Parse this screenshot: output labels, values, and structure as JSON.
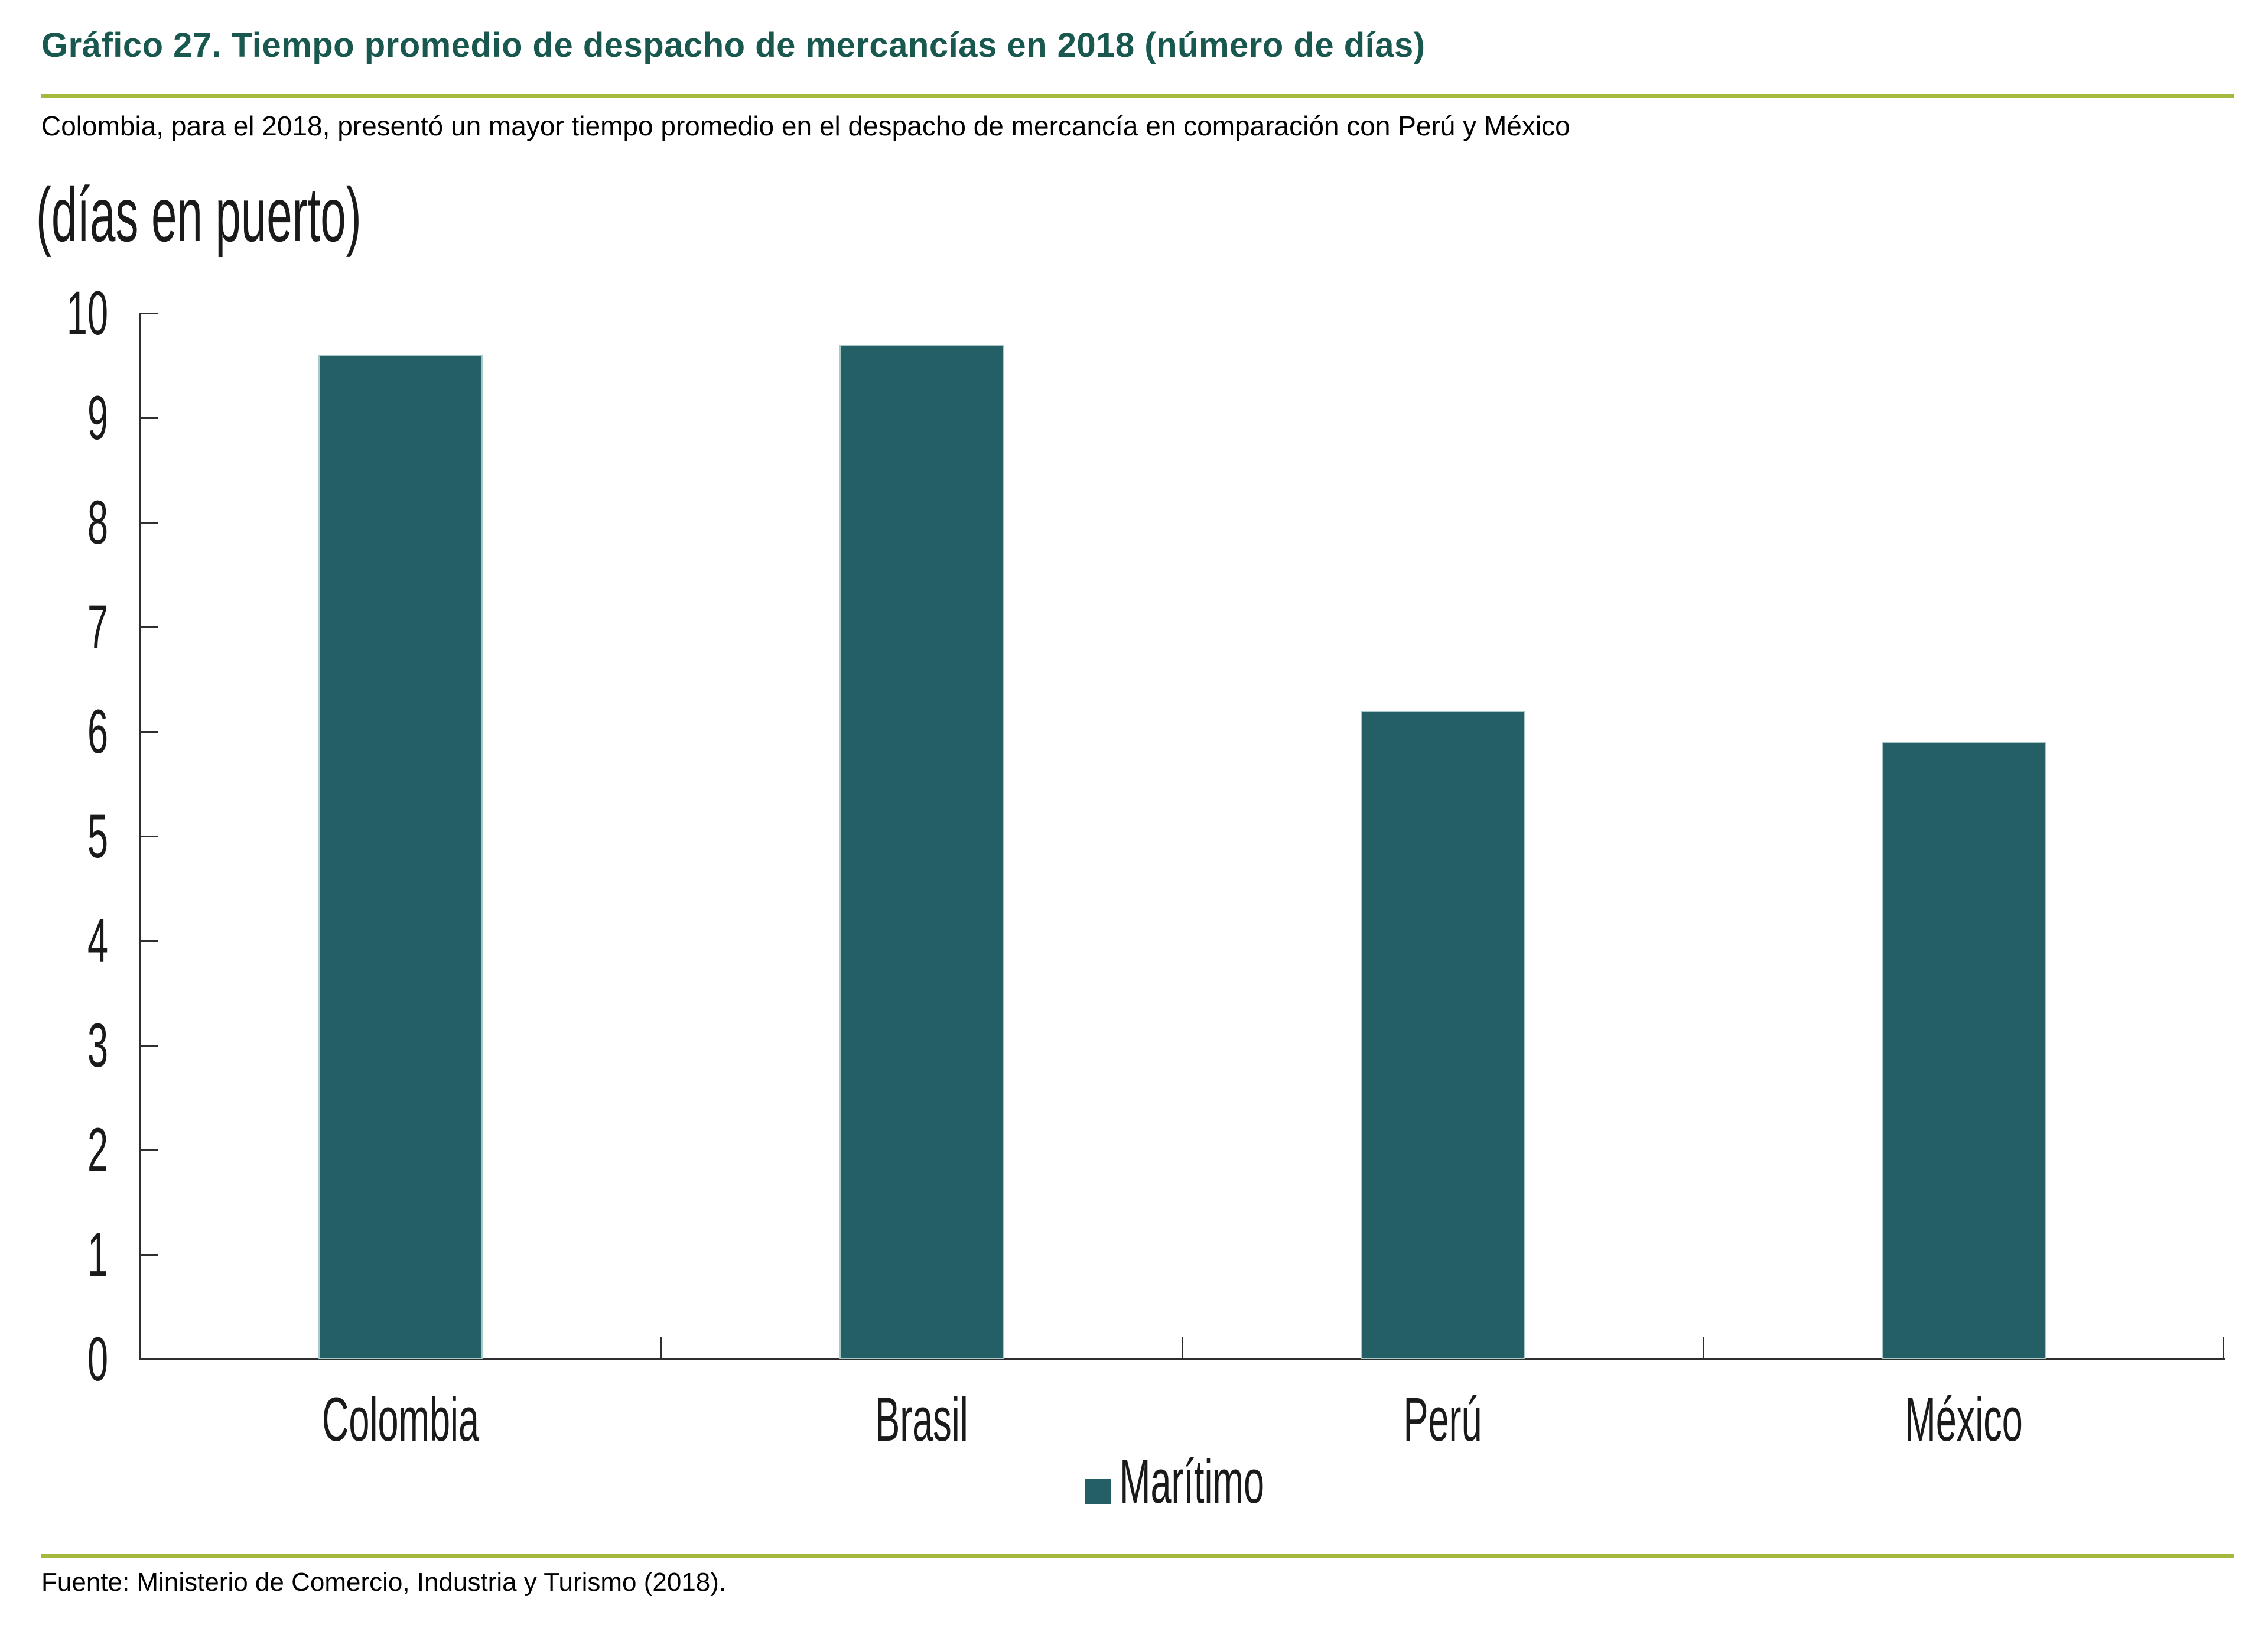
{
  "page": {
    "background": "#ffffff"
  },
  "header": {
    "title": "Gráfico 27. Tiempo promedio de despacho de mercancías en 2018 (número de días)",
    "subtitle": "Colombia, para el 2018, presentó un mayor tiempo promedio en el despacho de mercancía en comparación con Perú y México"
  },
  "chart": {
    "unit_label": "(días en puerto)",
    "legend": {
      "label": "Marítimo",
      "swatch_color": "#255f66"
    },
    "colors": {
      "bar": "#255f66",
      "bar_edge": "#a9c8ca",
      "axis": "#2e2e2e",
      "title_accent": "#19584e",
      "rule": "#a4b93e"
    }
  },
  "chart_data": {
    "type": "bar",
    "title": "Gráfico 27. Tiempo promedio de despacho de mercancías en 2018 (número de días)",
    "subtitle": "Colombia, para el 2018, presentó un mayor tiempo promedio en el despacho de mercancía en comparación con Perú y México",
    "categories": [
      "Colombia",
      "Brasil",
      "Perú",
      "México"
    ],
    "series": [
      {
        "name": "Marítimo",
        "values": [
          9.6,
          9.7,
          6.2,
          5.9
        ]
      }
    ],
    "xlabel": "",
    "ylabel": "(días en puerto)",
    "ylim": [
      0,
      10
    ],
    "yticks": [
      0,
      1,
      2,
      3,
      4,
      5,
      6,
      7,
      8,
      9,
      10
    ],
    "grid": false,
    "legend_position": "bottom-center",
    "bar_color": "#255f66"
  },
  "footer": {
    "source": "Fuente: Ministerio de Comercio, Industria y Turismo (2018)."
  }
}
